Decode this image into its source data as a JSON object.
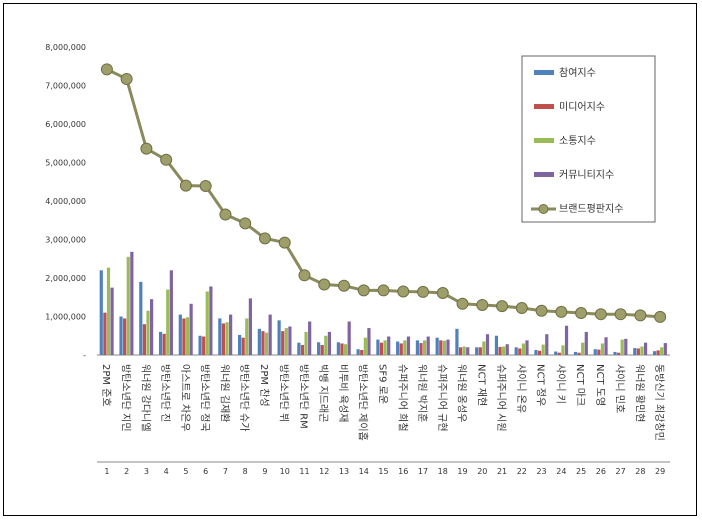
{
  "chart_data": {
    "type": "bar",
    "title": "",
    "xlabel": "",
    "ylabel": "",
    "ylim": [
      0,
      8000000
    ],
    "y_ticks": [
      "8,000,000",
      "7,000,000",
      "6,000,000",
      "5,000,000",
      "4,000,000",
      "3,000,000",
      "2,000,000",
      "1,000,000",
      "-"
    ],
    "grid": false,
    "legend_position": "top-right",
    "x_numbers": [
      "1",
      "2",
      "3",
      "4",
      "5",
      "6",
      "7",
      "8",
      "9",
      "10",
      "11",
      "12",
      "13",
      "14",
      "15",
      "16",
      "17",
      "18",
      "19",
      "20",
      "21",
      "22",
      "23",
      "24",
      "25",
      "26",
      "27",
      "28",
      "29"
    ],
    "categories": [
      "2PM 준호",
      "방탄소년단 지민",
      "워너원 강다니엘",
      "방탄소년단 진",
      "아스트로 차은우",
      "방탄소년단 정국",
      "워너원 김재환",
      "방탄소년단 슈가",
      "2PM 찬성",
      "방탄소년단 뷔",
      "방탄소년단 RM",
      "빅뱅 지드래곤",
      "비투비 육성재",
      "방탄소년단 제이홉",
      "SF9 로운",
      "슈퍼주니어 희철",
      "워너원 박지훈",
      "슈퍼주니어 규현",
      "워너원 옹성우",
      "NCT 재현",
      "슈퍼주니어 시원",
      "샤이니 온유",
      "NCT 정우",
      "샤이니 키",
      "NCT 마크",
      "NCT 도영",
      "샤이니 민호",
      "워너원 황민현",
      "동방신기 최강창민"
    ],
    "series": [
      {
        "name": "참여지수",
        "color": "#4f81bd",
        "values": [
          2200000,
          1000000,
          1900000,
          600000,
          1050000,
          500000,
          950000,
          520000,
          680000,
          900000,
          320000,
          330000,
          330000,
          150000,
          400000,
          350000,
          380000,
          450000,
          680000,
          200000,
          500000,
          200000,
          130000,
          90000,
          80000,
          150000,
          80000,
          180000,
          100000
        ]
      },
      {
        "name": "미디어지수",
        "color": "#c0504d",
        "values": [
          1100000,
          950000,
          800000,
          550000,
          950000,
          480000,
          820000,
          450000,
          620000,
          620000,
          260000,
          260000,
          300000,
          130000,
          320000,
          300000,
          310000,
          380000,
          200000,
          200000,
          210000,
          170000,
          110000,
          60000,
          60000,
          140000,
          60000,
          170000,
          120000
        ]
      },
      {
        "name": "소통지수",
        "color": "#9bbb59",
        "values": [
          2270000,
          2550000,
          1150000,
          1700000,
          980000,
          1650000,
          850000,
          950000,
          580000,
          700000,
          600000,
          500000,
          280000,
          450000,
          380000,
          380000,
          380000,
          370000,
          220000,
          350000,
          220000,
          300000,
          270000,
          250000,
          320000,
          300000,
          400000,
          220000,
          200000
        ]
      },
      {
        "name": "커뮤니티지수",
        "color": "#8064a2",
        "values": [
          1750000,
          2680000,
          1450000,
          2200000,
          1330000,
          1780000,
          1050000,
          1470000,
          1050000,
          740000,
          870000,
          600000,
          870000,
          700000,
          480000,
          480000,
          480000,
          400000,
          200000,
          540000,
          280000,
          380000,
          540000,
          760000,
          600000,
          460000,
          420000,
          320000,
          310000
        ]
      },
      {
        "name": "브랜드평판지수",
        "type": "line",
        "color": "#7f7f4f",
        "values": [
          7420000,
          7170000,
          5360000,
          5070000,
          4400000,
          4390000,
          3650000,
          3420000,
          3030000,
          2920000,
          2070000,
          1830000,
          1800000,
          1680000,
          1680000,
          1650000,
          1640000,
          1610000,
          1330000,
          1300000,
          1270000,
          1220000,
          1150000,
          1120000,
          1090000,
          1060000,
          1060000,
          1030000,
          990000
        ]
      }
    ]
  }
}
